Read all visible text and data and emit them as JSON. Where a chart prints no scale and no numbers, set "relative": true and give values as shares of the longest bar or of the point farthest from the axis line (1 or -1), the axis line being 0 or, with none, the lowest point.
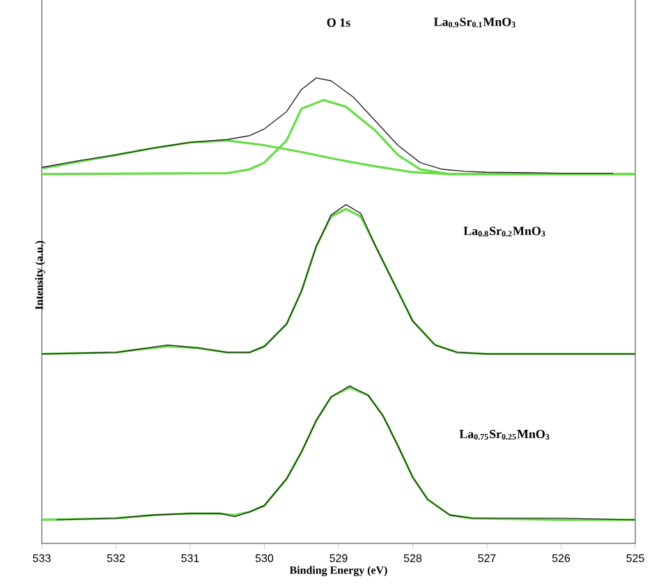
{
  "chart_data": [
    {
      "type": "line",
      "relative": true,
      "xlim": [
        533,
        525
      ],
      "tick_labels": false,
      "annotations": [
        "O 1s",
        "La$_{0.9}$Sr$_{0.1}$MnO$_{3}$"
      ],
      "series": [
        {
          "color": "#66dd44",
          "x": [
            533,
            532,
            531.5,
            531,
            530.5,
            530,
            529.5,
            529,
            528.5,
            528,
            527.5,
            525
          ],
          "values": [
            0.06,
            0.2,
            0.27,
            0.33,
            0.35,
            0.3,
            0.23,
            0.15,
            0.08,
            0.02,
            0,
            0
          ]
        },
        {
          "color": "#66dd44",
          "x": [
            533,
            530.5,
            530.2,
            530,
            529.7,
            529.5,
            529.2,
            528.9,
            528.5,
            528.2,
            527.9,
            527.5,
            525
          ],
          "values": [
            0,
            0.01,
            0.05,
            0.12,
            0.35,
            0.68,
            0.77,
            0.7,
            0.45,
            0.2,
            0.05,
            0,
            0
          ]
        },
        {
          "color": "#222222",
          "x": [
            533,
            532.5,
            532,
            531.5,
            531,
            530.5,
            530.2,
            530,
            529.7,
            529.5,
            529.3,
            529.1,
            528.8,
            528.5,
            528.2,
            527.9,
            527.6,
            527.3,
            527,
            526,
            525.3
          ],
          "values": [
            0.07,
            0.14,
            0.2,
            0.27,
            0.33,
            0.36,
            0.4,
            0.47,
            0.65,
            0.88,
            1.0,
            0.97,
            0.8,
            0.55,
            0.3,
            0.12,
            0.05,
            0.03,
            0.02,
            0.01,
            0.01
          ]
        }
      ]
    },
    {
      "type": "line",
      "relative": true,
      "xlim": [
        533,
        525
      ],
      "tick_labels": false,
      "ylabel": "Intensity (a.u.)",
      "annotations": [
        "La$_{0.8}$Sr$_{0.2}$MnO$_{3}$"
      ],
      "series": [
        {
          "color": "#66dd44",
          "x": [
            533,
            532,
            531.7,
            531.3,
            530.9,
            530.5,
            530.2,
            530,
            529.7,
            529.5,
            529.3,
            529.1,
            528.9,
            528.7,
            528.5,
            528.2,
            528,
            527.7,
            527.4,
            527,
            525
          ],
          "values": [
            0,
            0.01,
            0.03,
            0.05,
            0.04,
            0.01,
            0.01,
            0.05,
            0.2,
            0.42,
            0.72,
            0.92,
            0.97,
            0.92,
            0.72,
            0.42,
            0.22,
            0.06,
            0.01,
            0,
            0
          ]
        },
        {
          "color": "#222222",
          "x": [
            533,
            532,
            531.7,
            531.3,
            530.9,
            530.5,
            530.2,
            530,
            529.7,
            529.5,
            529.3,
            529.1,
            528.9,
            528.7,
            528.5,
            528.2,
            528,
            527.7,
            527.4,
            527,
            525
          ],
          "values": [
            0,
            0.01,
            0.03,
            0.06,
            0.04,
            0.01,
            0.01,
            0.05,
            0.2,
            0.42,
            0.72,
            0.93,
            1.0,
            0.94,
            0.72,
            0.42,
            0.22,
            0.06,
            0.01,
            0,
            0
          ]
        }
      ]
    },
    {
      "type": "line",
      "relative": true,
      "xlim": [
        533,
        525
      ],
      "xticks": [
        533,
        532,
        531,
        530,
        529,
        528,
        527,
        526,
        525
      ],
      "tick_labels": "x",
      "xlabel": "Binding Energy (eV)",
      "annotations": [
        "La$_{0.75}$Sr$_{0.25}$MnO$_{3}$"
      ],
      "series": [
        {
          "color": "#66dd44",
          "x": [
            533,
            532,
            531.5,
            531,
            530.6,
            530.4,
            530.2,
            530,
            529.7,
            529.5,
            529.3,
            529.1,
            528.85,
            528.6,
            528.4,
            528.2,
            528,
            527.8,
            527.5,
            527.2,
            526,
            525
          ],
          "values": [
            0.15,
            0.16,
            0.18,
            0.19,
            0.19,
            0.18,
            0.2,
            0.24,
            0.41,
            0.58,
            0.78,
            0.93,
            0.99,
            0.94,
            0.81,
            0.62,
            0.42,
            0.28,
            0.18,
            0.16,
            0.15,
            0.15
          ]
        },
        {
          "color": "#222222",
          "x": [
            532.8,
            532,
            531.5,
            531,
            530.6,
            530.4,
            530.2,
            530,
            529.7,
            529.5,
            529.3,
            529.1,
            528.85,
            528.6,
            528.4,
            528.2,
            528,
            527.8,
            527.5,
            527.2,
            526,
            525
          ],
          "values": [
            0.15,
            0.16,
            0.18,
            0.19,
            0.19,
            0.17,
            0.2,
            0.24,
            0.41,
            0.58,
            0.78,
            0.93,
            1.0,
            0.94,
            0.81,
            0.62,
            0.42,
            0.28,
            0.18,
            0.16,
            0.16,
            0.15
          ]
        }
      ]
    }
  ]
}
